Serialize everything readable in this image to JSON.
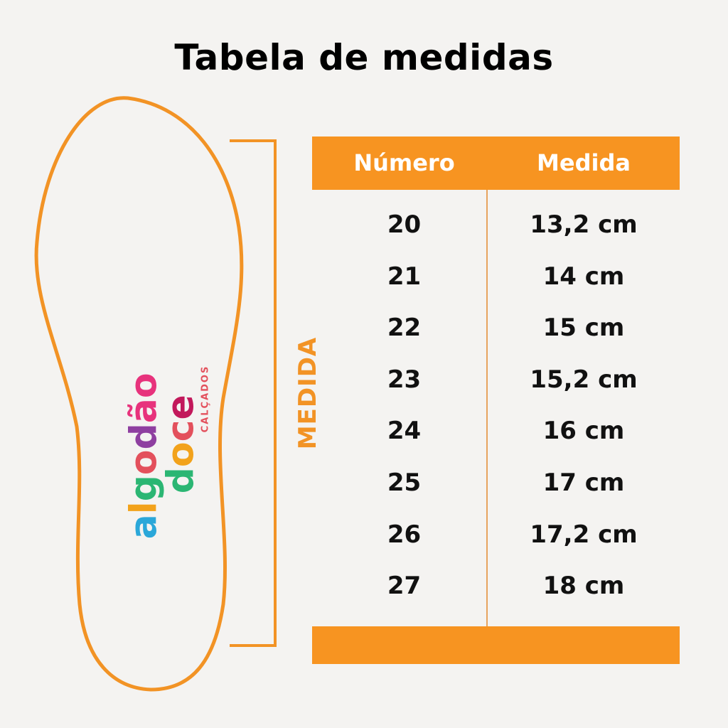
{
  "title": "Tabela de medidas",
  "side_label": "MEDIDA",
  "table": {
    "headers": {
      "numero": "Número",
      "medida": "Medida"
    },
    "rows": [
      {
        "numero": "20",
        "medida": "13,2 cm"
      },
      {
        "numero": "21",
        "medida": "14 cm"
      },
      {
        "numero": "22",
        "medida": "15 cm"
      },
      {
        "numero": "23",
        "medida": "15,2 cm"
      },
      {
        "numero": "24",
        "medida": "16 cm"
      },
      {
        "numero": "25",
        "medida": "17 cm"
      },
      {
        "numero": "26",
        "medida": "17,2 cm"
      },
      {
        "numero": "27",
        "medida": "18 cm"
      }
    ]
  },
  "logo": {
    "line1": "algodão",
    "line2": "doce",
    "line3": "CALÇADOS"
  },
  "colors": {
    "accent": "#f79421",
    "background": "#f4f3f1",
    "text": "#111111"
  }
}
